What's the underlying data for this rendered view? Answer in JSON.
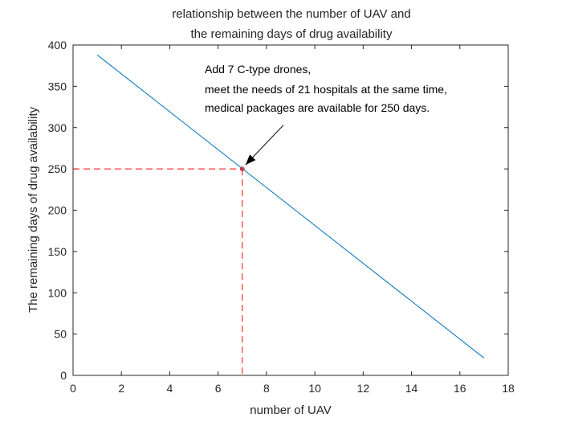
{
  "chart_data": {
    "type": "line",
    "title": [
      "relationship between the number of UAV and",
      "the remaining days of drug availability"
    ],
    "xlabel": "number of UAV",
    "ylabel": "The remaining days of drug availability",
    "xlim": [
      0,
      18
    ],
    "ylim": [
      0,
      400
    ],
    "xticks": [
      0,
      2,
      4,
      6,
      8,
      10,
      12,
      14,
      16,
      18
    ],
    "yticks": [
      0,
      50,
      100,
      150,
      200,
      250,
      300,
      350,
      400
    ],
    "grid": false,
    "series": [
      {
        "x": [
          1,
          17
        ],
        "y": [
          388,
          21
        ],
        "color": "#0072bd"
      }
    ],
    "highlight_point": {
      "x": 7,
      "y": 250,
      "color": "#ff0000",
      "style": "dashed"
    },
    "annotation": {
      "lines": [
        "Add 7 C-type drones,",
        "meet the needs of 21 hospitals at the same time,",
        "medical packages are available for 250 days."
      ],
      "arrow_to": {
        "x": 7,
        "y": 250
      },
      "arrow_from": {
        "x": 8.7,
        "y": 303
      }
    }
  }
}
